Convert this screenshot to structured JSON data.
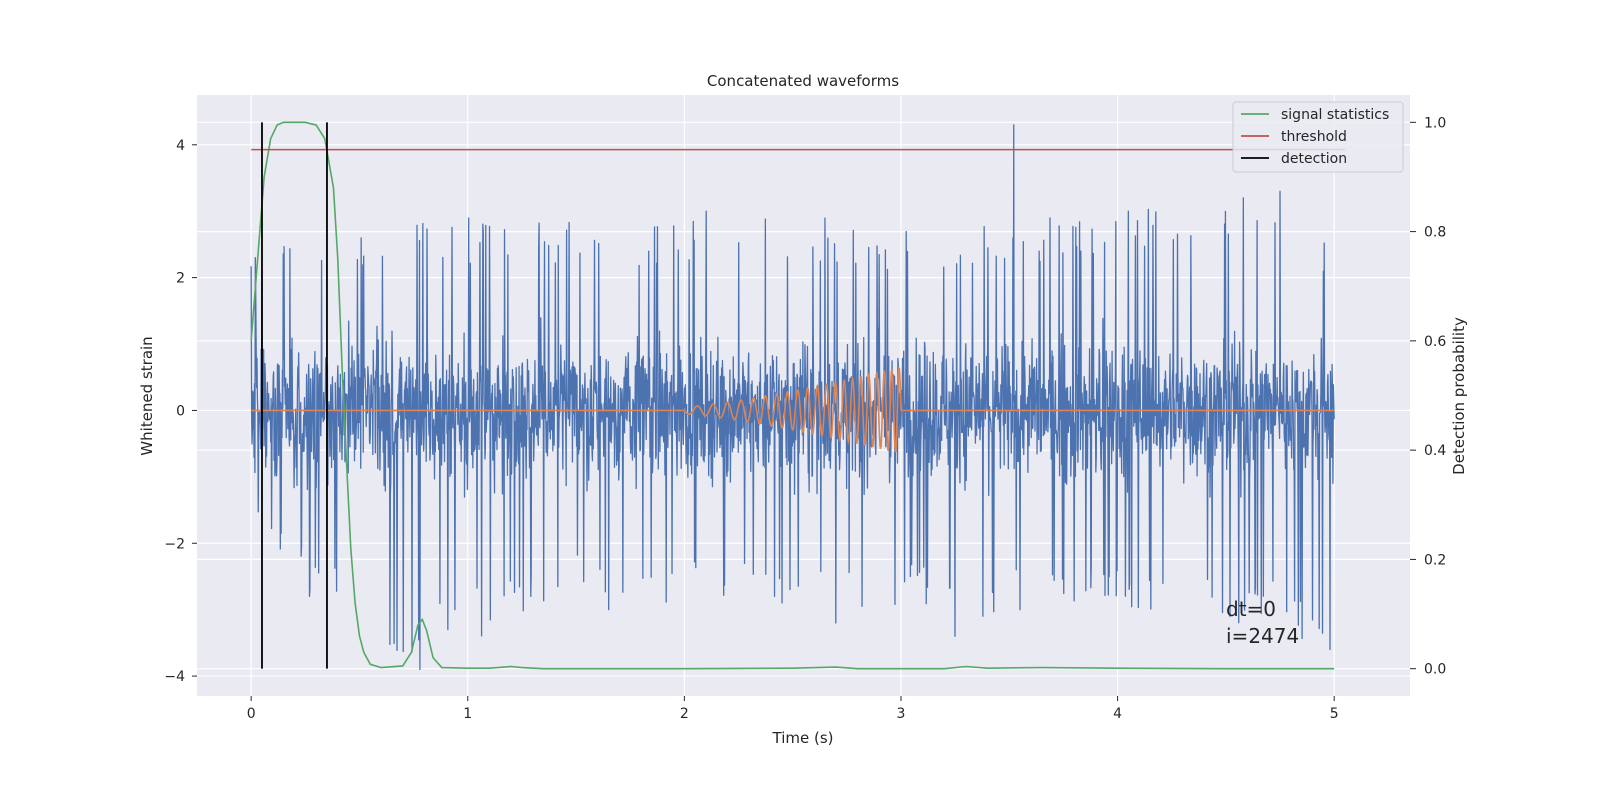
{
  "chart_data": {
    "type": "line",
    "title": "Concatenated waveforms",
    "xlabel": "Time (s)",
    "ylabel": "Whitened strain",
    "ylabel_right": "Detection probability",
    "xlim": [
      -0.25,
      5.35
    ],
    "ylim": [
      -4.3,
      4.75
    ],
    "ylim_right": [
      -0.05,
      1.05
    ],
    "xticks": [
      0,
      1,
      2,
      3,
      4,
      5
    ],
    "xtick_labels": [
      "0",
      "1",
      "2",
      "3",
      "4",
      "5"
    ],
    "yticks": [
      -4,
      -2,
      0,
      2,
      4
    ],
    "ytick_labels": [
      "−4",
      "−2",
      "0",
      "2",
      "4"
    ],
    "yticks_right": [
      0.0,
      0.2,
      0.4,
      0.6,
      0.8,
      1.0
    ],
    "ytick_labels_right": [
      "0.0",
      "0.2",
      "0.4",
      "0.6",
      "0.8",
      "1.0"
    ],
    "grid": true,
    "legend_position": "top-right",
    "legend": [
      {
        "label": "signal statistics",
        "color": "#55a868"
      },
      {
        "label": "threshold",
        "color": "#c44e52"
      },
      {
        "label": "detection",
        "color": "#000000"
      }
    ],
    "series": [
      {
        "kind": "noise",
        "axis": "left",
        "color": "#4c72b0",
        "x_range": [
          0,
          5
        ],
        "typical_amplitude": 0.7,
        "envelope_top": [
          [
            0.0,
            2.3
          ],
          [
            0.2,
            2.6
          ],
          [
            0.5,
            2.8
          ],
          [
            1.0,
            2.9
          ],
          [
            1.6,
            2.9
          ],
          [
            2.1,
            2.9
          ],
          [
            2.5,
            3.0
          ],
          [
            3.0,
            2.7
          ],
          [
            3.5,
            2.8
          ],
          [
            4.0,
            3.1
          ],
          [
            4.5,
            3.1
          ],
          [
            5.0,
            2.7
          ]
        ],
        "envelope_bottom": [
          [
            0.0,
            -1.6
          ],
          [
            0.3,
            -2.8
          ],
          [
            0.8,
            -3.9
          ],
          [
            1.5,
            -2.7
          ],
          [
            2.0,
            -3.0
          ],
          [
            2.5,
            -3.0
          ],
          [
            3.0,
            -3.0
          ],
          [
            3.5,
            -3.2
          ],
          [
            4.0,
            -3.0
          ],
          [
            4.5,
            -3.2
          ],
          [
            5.0,
            -3.6
          ]
        ],
        "spikes": [
          [
            0.02,
            2.3
          ],
          [
            0.27,
            -2.8
          ],
          [
            0.78,
            -3.9
          ],
          [
            0.94,
            -3.0
          ],
          [
            1.29,
            -2.8
          ],
          [
            1.65,
            -3.0
          ],
          [
            2.1,
            3.0
          ],
          [
            2.45,
            -2.9
          ],
          [
            2.7,
            -3.2
          ],
          [
            3.25,
            -3.4
          ],
          [
            3.52,
            4.3
          ],
          [
            3.55,
            -3.0
          ],
          [
            4.05,
            3.0
          ],
          [
            4.52,
            -3.1
          ],
          [
            4.58,
            3.2
          ],
          [
            4.75,
            3.3
          ],
          [
            4.98,
            -3.6
          ]
        ]
      },
      {
        "kind": "chirp",
        "axis": "left",
        "color": "#dd8452",
        "x_range": [
          0,
          5
        ],
        "chirp_start": 2.0,
        "chirp_end": 3.0,
        "max_amplitude": 0.65,
        "cycles_visible": 21
      },
      {
        "name": "signal statistics",
        "axis": "right",
        "color": "#55a868",
        "points": [
          [
            0,
            0.6
          ],
          [
            0.03,
            0.75
          ],
          [
            0.06,
            0.9
          ],
          [
            0.09,
            0.97
          ],
          [
            0.12,
            0.995
          ],
          [
            0.15,
            1.0
          ],
          [
            0.25,
            1.0
          ],
          [
            0.3,
            0.995
          ],
          [
            0.34,
            0.97
          ],
          [
            0.38,
            0.88
          ],
          [
            0.4,
            0.75
          ],
          [
            0.42,
            0.55
          ],
          [
            0.44,
            0.38
          ],
          [
            0.46,
            0.22
          ],
          [
            0.48,
            0.12
          ],
          [
            0.5,
            0.06
          ],
          [
            0.52,
            0.03
          ],
          [
            0.55,
            0.008
          ],
          [
            0.6,
            0.002
          ],
          [
            0.7,
            0.005
          ],
          [
            0.74,
            0.03
          ],
          [
            0.77,
            0.08
          ],
          [
            0.79,
            0.09
          ],
          [
            0.81,
            0.07
          ],
          [
            0.84,
            0.02
          ],
          [
            0.88,
            0.002
          ],
          [
            1.0,
            0.001
          ],
          [
            1.1,
            0.001
          ],
          [
            1.2,
            0.004
          ],
          [
            1.25,
            0.002
          ],
          [
            1.35,
            0.0
          ],
          [
            2.0,
            0.0
          ],
          [
            2.5,
            0.001
          ],
          [
            2.7,
            0.003
          ],
          [
            2.8,
            0.0
          ],
          [
            3.2,
            0.0
          ],
          [
            3.3,
            0.004
          ],
          [
            3.4,
            0.001
          ],
          [
            3.65,
            0.002
          ],
          [
            4.0,
            0.001
          ],
          [
            4.5,
            0.0
          ],
          [
            5.0,
            0.0
          ]
        ]
      },
      {
        "name": "threshold",
        "axis": "right",
        "color": "#c44e52",
        "x_range": [
          0,
          5.05
        ],
        "value": 0.95
      }
    ],
    "detections": [
      0.05,
      0.35
    ],
    "annotations": [
      "dt=0",
      "i=2474"
    ]
  }
}
